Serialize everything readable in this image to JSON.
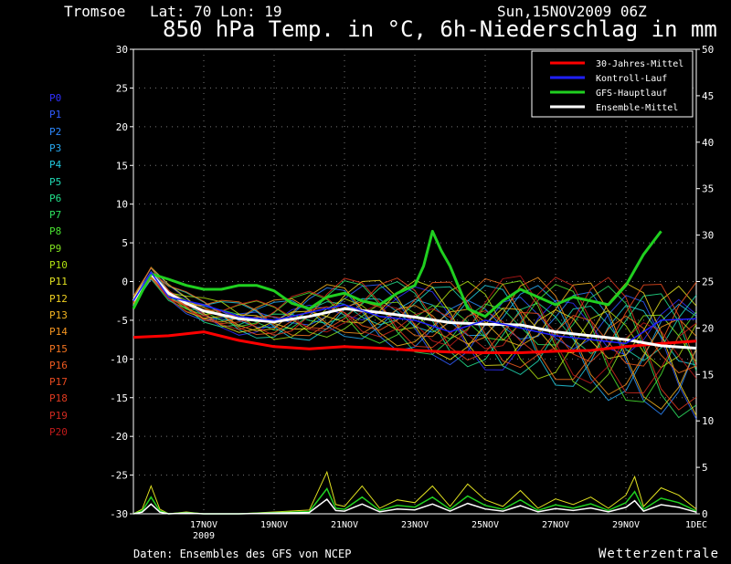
{
  "header": {
    "location": "Tromsoe",
    "coords": "Lat: 70 Lon: 19",
    "datetime": "Sun,15NOV2009 06Z",
    "title": "850 hPa Temp. in °C, 6h-Niederschlag in mm"
  },
  "footer": {
    "source": "Daten: Ensembles des GFS von NCEP",
    "brand": "Wetterzentrale"
  },
  "members": [
    {
      "label": "P0",
      "color": "#3030ff"
    },
    {
      "label": "P1",
      "color": "#2f5cff"
    },
    {
      "label": "P2",
      "color": "#2c88ff"
    },
    {
      "label": "P3",
      "color": "#27a8f0"
    },
    {
      "label": "P4",
      "color": "#22c8dc"
    },
    {
      "label": "P5",
      "color": "#20d8b4"
    },
    {
      "label": "P6",
      "color": "#22e08a"
    },
    {
      "label": "P7",
      "color": "#2ee060"
    },
    {
      "label": "P8",
      "color": "#48e030"
    },
    {
      "label": "P9",
      "color": "#80e020"
    },
    {
      "label": "P10",
      "color": "#b0e010"
    },
    {
      "label": "P11",
      "color": "#e0e020"
    },
    {
      "label": "P12",
      "color": "#f0d020"
    },
    {
      "label": "P13",
      "color": "#f4b420"
    },
    {
      "label": "P14",
      "color": "#f49420"
    },
    {
      "label": "P15",
      "color": "#f47420"
    },
    {
      "label": "P16",
      "color": "#f05a20"
    },
    {
      "label": "P17",
      "color": "#e84a20"
    },
    {
      "label": "P18",
      "color": "#e03a20"
    },
    {
      "label": "P19",
      "color": "#d02a20"
    },
    {
      "label": "P20",
      "color": "#c01a1a"
    }
  ],
  "chart_data": {
    "type": "line",
    "title": "850 hPa Temp. in °C, 6h-Niederschlag in mm",
    "x_ticks": [
      {
        "day": 2,
        "label": "17NOV",
        "sub": "2009"
      },
      {
        "day": 4,
        "label": "19NOV"
      },
      {
        "day": 6,
        "label": "21NOV"
      },
      {
        "day": 8,
        "label": "23NOV"
      },
      {
        "day": 10,
        "label": "25NOV"
      },
      {
        "day": 12,
        "label": "27NOV"
      },
      {
        "day": 14,
        "label": "29NOV"
      },
      {
        "day": 16,
        "label": "1DEC"
      }
    ],
    "x_range_days": [
      0,
      16
    ],
    "left_axis": {
      "ylim": [
        -30,
        30
      ],
      "ticks": [
        30,
        25,
        20,
        15,
        10,
        5,
        0,
        -5,
        -10,
        -15,
        -20,
        -25,
        -30
      ]
    },
    "right_axis": {
      "ylim": [
        0,
        50
      ],
      "ticks": [
        50,
        45,
        40,
        35,
        30,
        25,
        20,
        15,
        10,
        5,
        0
      ]
    },
    "grid": true,
    "legend_position": "top-right",
    "legend": [
      {
        "name": "30-Jahres-Mittel",
        "color": "#ff0000"
      },
      {
        "name": "Kontroll-Lauf",
        "color": "#2020ff"
      },
      {
        "name": "GFS-Hauptlauf",
        "color": "#20d020"
      },
      {
        "name": "Ensemble-Mittel",
        "color": "#ffffff"
      }
    ],
    "series": [
      {
        "name": "30-Jahres-Mittel",
        "color": "#ff0000",
        "width": 3,
        "x": [
          0,
          1,
          2,
          3,
          4,
          5,
          6,
          7,
          8,
          9,
          10,
          11,
          12,
          13,
          14,
          15,
          16
        ],
        "y": [
          -7.2,
          -7.0,
          -6.5,
          -7.6,
          -8.4,
          -8.7,
          -8.4,
          -8.6,
          -8.9,
          -9.1,
          -9.2,
          -9.2,
          -9.0,
          -8.9,
          -8.4,
          -8.0,
          -7.7
        ]
      },
      {
        "name": "Ensemble-Mittel",
        "color": "#ffffff",
        "width": 3,
        "x": [
          0,
          0.5,
          1,
          1.5,
          2,
          3,
          4,
          5,
          6,
          7,
          8,
          9,
          10,
          11,
          12,
          13,
          14,
          15,
          16
        ],
        "y": [
          -2.5,
          1.0,
          -1.5,
          -2.8,
          -3.8,
          -4.8,
          -5.2,
          -4.5,
          -3.5,
          -4.0,
          -4.6,
          -5.3,
          -5.5,
          -5.6,
          -6.5,
          -7.0,
          -7.5,
          -8.3,
          -8.6
        ]
      },
      {
        "name": "GFS-Hauptlauf",
        "color": "#20d020",
        "width": 3,
        "x": [
          0,
          0.5,
          1,
          1.5,
          2,
          2.5,
          3,
          3.5,
          4,
          4.5,
          5,
          5.5,
          6,
          6.5,
          7,
          7.5,
          8,
          8.25,
          8.5,
          8.75,
          9,
          9.5,
          10,
          10.5,
          11,
          11.5,
          12,
          12.5,
          13,
          13.5,
          14,
          14.5,
          15
        ],
        "y": [
          -3.5,
          1.0,
          0.3,
          -0.5,
          -1.0,
          -1.0,
          -0.5,
          -0.5,
          -1.2,
          -2.8,
          -3.5,
          -2.0,
          -1.5,
          -2.5,
          -3.0,
          -1.5,
          -0.5,
          2.0,
          6.5,
          4.0,
          2.0,
          -3.5,
          -4.5,
          -2.5,
          -1.0,
          -2.0,
          -3.0,
          -2.0,
          -2.5,
          -3.0,
          -0.5,
          3.5,
          6.5
        ]
      },
      {
        "name": "Kontroll-Lauf",
        "color": "#2020ff",
        "width": 1.5,
        "x": [
          0,
          0.5,
          1,
          1.5,
          2,
          3,
          4,
          5,
          6,
          7,
          8,
          9,
          10,
          11,
          12,
          13,
          14,
          15,
          16
        ],
        "y": [
          -2.5,
          1.2,
          -2.0,
          -2.5,
          -3.0,
          -4.5,
          -5.0,
          -4.0,
          -3.0,
          -4.5,
          -5.0,
          -6.5,
          -5.0,
          -6.0,
          -7.0,
          -7.5,
          -8.0,
          -5.0,
          -4.8
        ]
      }
    ],
    "precipitation": {
      "x": [
        0,
        0.25,
        0.5,
        0.75,
        1,
        1.5,
        2,
        3,
        4,
        5,
        5.5,
        5.75,
        6,
        6.5,
        7,
        7.5,
        8,
        8.5,
        9,
        9.5,
        10,
        10.5,
        11,
        11.5,
        12,
        12.5,
        13,
        13.5,
        14,
        14.25,
        14.5,
        15,
        15.5,
        16
      ],
      "y": [
        0,
        0.5,
        3.0,
        0.5,
        0,
        0.2,
        0,
        0,
        0.2,
        0.4,
        4.5,
        1.0,
        0.8,
        3.0,
        0.6,
        1.5,
        1.2,
        3.0,
        0.8,
        3.2,
        1.5,
        0.8,
        2.5,
        0.6,
        1.6,
        1.0,
        1.8,
        0.6,
        2.0,
        4.0,
        0.8,
        2.8,
        2.0,
        0.5
      ]
    }
  }
}
